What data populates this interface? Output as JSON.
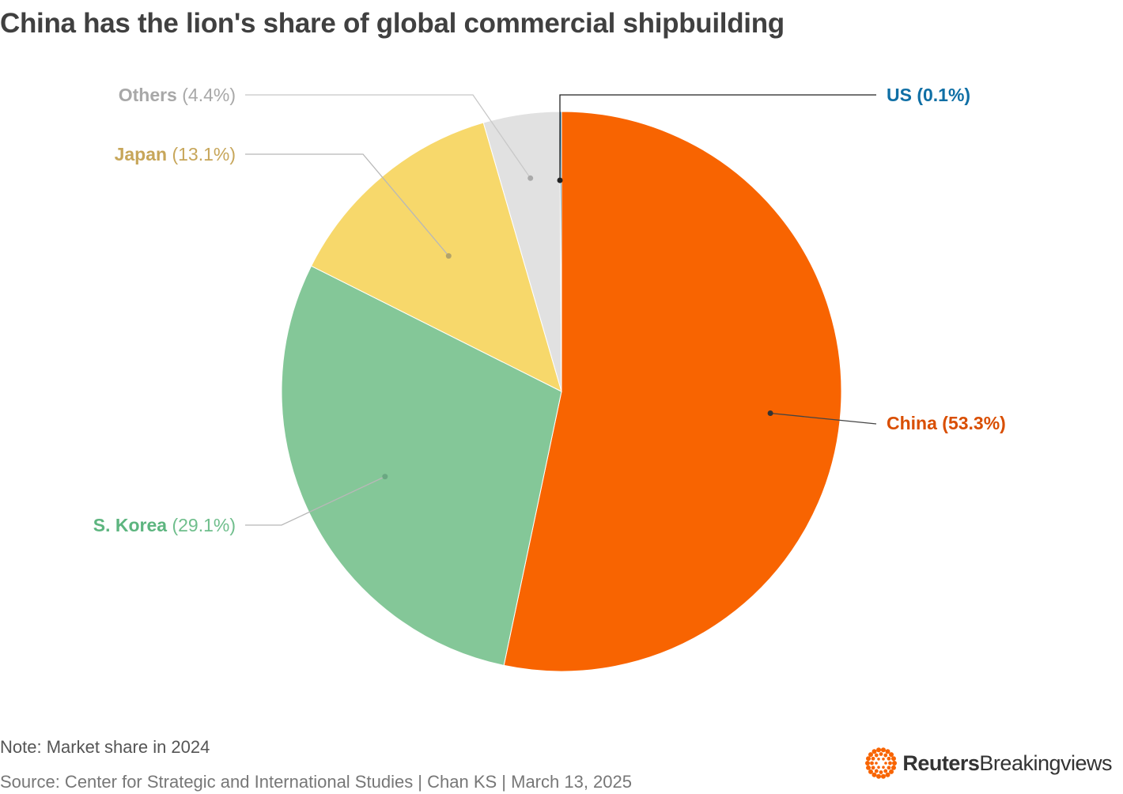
{
  "title": "China has the lion's share of global commercial shipbuilding",
  "note": "Note: Market share in 2024",
  "source": "Source: Center for Strategic and International Studies | Chan KS | March 13, 2025",
  "brand": {
    "name": "Reuters",
    "sub": "Breakingviews"
  },
  "chart_data": {
    "type": "pie",
    "title": "China has the lion's share of global commercial shipbuilding",
    "slices": [
      {
        "name": "China",
        "value": 53.3,
        "pct_label": "(53.3%)",
        "color": "#F86401",
        "label_color": "#D94E00",
        "pct_color": "#D94E00"
      },
      {
        "name": "S. Korea",
        "value": 29.1,
        "pct_label": "(29.1%)",
        "color": "#84C798",
        "label_color": "#5DB57F",
        "pct_color": "#6FBE8C"
      },
      {
        "name": "Japan",
        "value": 13.1,
        "pct_label": "(13.1%)",
        "color": "#F7D86B",
        "label_color": "#C7A65A",
        "pct_color": "#C7A65A"
      },
      {
        "name": "Others",
        "value": 4.4,
        "pct_label": "(4.4%)",
        "color": "#E1E1E1",
        "label_color": "#A8A8A8",
        "pct_color": "#A8A8A8"
      },
      {
        "name": "US",
        "value": 0.1,
        "pct_label": "(0.1%)",
        "color": "#0B7AB5",
        "label_color": "#0F6FA5",
        "pct_color": "#0F6FA5"
      }
    ],
    "start": "top, clockwise",
    "legend": "none"
  }
}
